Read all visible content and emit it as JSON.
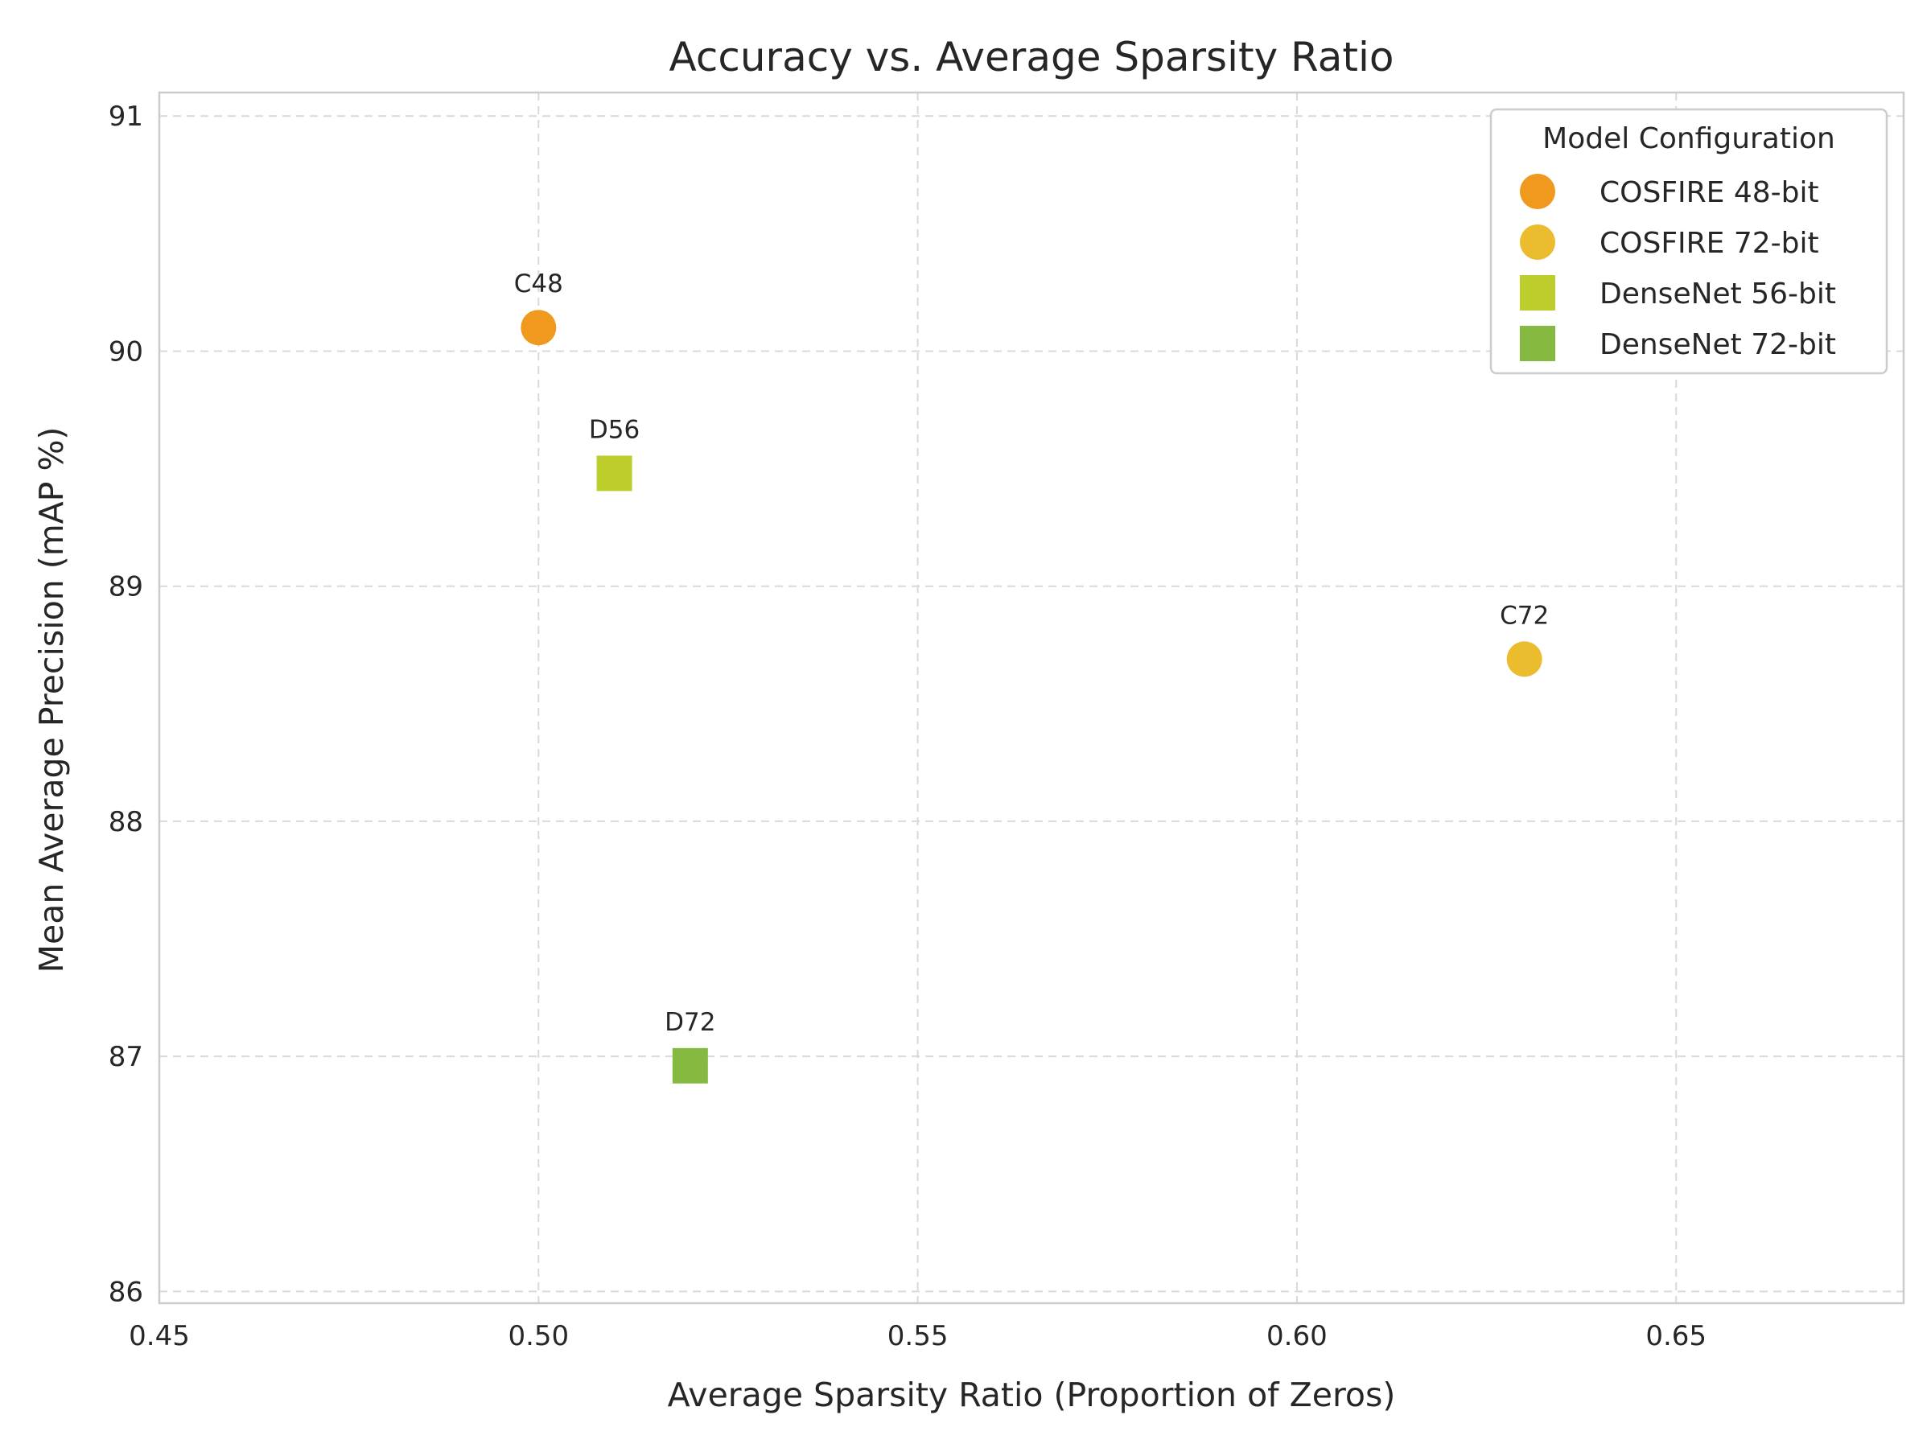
{
  "chart_data": {
    "type": "scatter",
    "title": "Accuracy vs. Average Sparsity Ratio",
    "xlabel": "Average Sparsity Ratio (Proportion of Zeros)",
    "ylabel": "Mean Average Precision (mAP %)",
    "xlim": [
      0.45,
      0.68
    ],
    "ylim": [
      85.95,
      91.1
    ],
    "xticks": [
      0.45,
      0.5,
      0.55,
      0.6,
      0.65
    ],
    "xtick_labels": [
      "0.45",
      "0.50",
      "0.55",
      "0.60",
      "0.65"
    ],
    "yticks": [
      86,
      87,
      88,
      89,
      90,
      91
    ],
    "ytick_labels": [
      "86",
      "87",
      "88",
      "89",
      "90",
      "91"
    ],
    "grid": true,
    "legend": {
      "title": "Model Configuration",
      "position": "top-right"
    },
    "series": [
      {
        "name": "COSFIRE 48-bit",
        "label": "C48",
        "marker": "circle",
        "color": "#f0991f",
        "x": 0.5,
        "y": 90.1
      },
      {
        "name": "COSFIRE 72-bit",
        "label": "C72",
        "marker": "circle",
        "color": "#ebbc2e",
        "x": 0.63,
        "y": 88.69
      },
      {
        "name": "DenseNet 56-bit",
        "label": "D56",
        "marker": "square",
        "color": "#bccd2c",
        "x": 0.51,
        "y": 89.48
      },
      {
        "name": "DenseNet 72-bit",
        "label": "D72",
        "marker": "square",
        "color": "#86b93f",
        "x": 0.52,
        "y": 86.96
      }
    ]
  }
}
